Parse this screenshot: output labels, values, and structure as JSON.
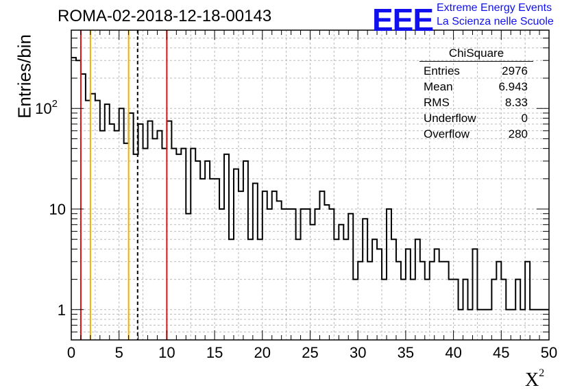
{
  "header": {
    "title": "ROMA-02-2018-12-18-00143",
    "logo_text": "EEE",
    "logo_line1": "Extreme Energy Events",
    "logo_line2": "La Scienza nelle Scuole"
  },
  "stats_box": {
    "title": "ChiSquare",
    "rows": [
      {
        "label": "Entries",
        "value": "2976"
      },
      {
        "label": "Mean",
        "value": "6.943"
      },
      {
        "label": "RMS",
        "value": "8.33"
      },
      {
        "label": "Underflow",
        "value": "0"
      },
      {
        "label": "Overflow",
        "value": "280"
      }
    ]
  },
  "chart_data": {
    "type": "histogram",
    "xlabel": "X",
    "xlabel_superscript": "2",
    "ylabel": "Entries/bin",
    "xlim": [
      0,
      50
    ],
    "ylim": [
      0.5,
      600
    ],
    "yscale": "log",
    "bin_width": 0.5,
    "grid": true,
    "x_ticks": [
      "0",
      "5",
      "10",
      "15",
      "20",
      "25",
      "30",
      "35",
      "40",
      "45",
      "50"
    ],
    "y_ticks": [
      {
        "value": 1,
        "label": "1"
      },
      {
        "value": 10,
        "label": "10"
      },
      {
        "value": 100,
        "label": "10",
        "sup": "2"
      }
    ],
    "values": [
      320,
      300,
      220,
      120,
      140,
      120,
      60,
      110,
      70,
      60,
      100,
      45,
      90,
      35,
      70,
      40,
      75,
      50,
      60,
      40,
      75,
      40,
      35,
      40,
      9,
      40,
      30,
      20,
      30,
      20,
      20,
      10,
      35,
      5,
      25,
      15,
      30,
      5,
      18,
      5,
      15,
      10,
      15,
      12,
      10,
      10,
      10,
      5,
      10,
      10,
      7,
      10,
      15,
      11,
      10,
      5,
      7,
      5,
      9,
      2,
      3,
      8,
      3,
      5,
      4,
      2,
      10,
      5,
      3,
      2,
      4,
      2,
      5,
      3,
      2,
      3,
      4,
      3,
      3,
      2,
      2,
      1,
      2,
      1,
      4,
      1,
      1,
      1,
      2,
      3,
      2,
      1,
      1,
      2,
      1,
      3,
      1,
      1,
      1,
      1
    ],
    "vertical_lines": [
      {
        "x": 1,
        "color": "#e01010",
        "style": "solid"
      },
      {
        "x": 2,
        "color": "#f0b000",
        "style": "solid"
      },
      {
        "x": 6,
        "color": "#f0b000",
        "style": "solid"
      },
      {
        "x": 6.943,
        "color": "#000000",
        "style": "dashed"
      },
      {
        "x": 10,
        "color": "#e01010",
        "style": "solid"
      }
    ]
  }
}
